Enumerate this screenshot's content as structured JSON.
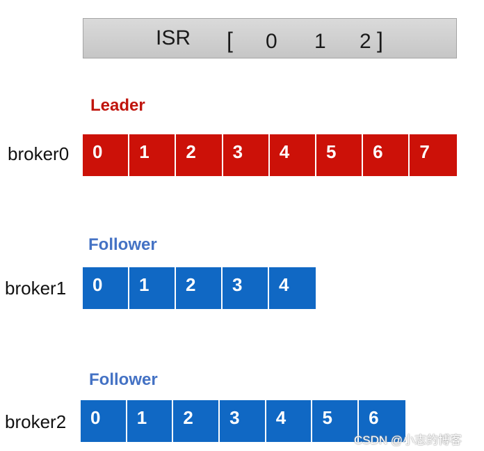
{
  "isr": {
    "label": "ISR",
    "open_bracket": "[",
    "close_bracket": "]",
    "members": [
      "0",
      "1",
      "2"
    ]
  },
  "rows": [
    {
      "role": "Leader",
      "role_color": "#c0140c",
      "broker": "broker0",
      "cell_color": "#cc1108",
      "offsets": [
        "0",
        "1",
        "2",
        "3",
        "4",
        "5",
        "6",
        "7"
      ]
    },
    {
      "role": "Follower",
      "role_color": "#4472c4",
      "broker": "broker1",
      "cell_color": "#1068c4",
      "offsets": [
        "0",
        "1",
        "2",
        "3",
        "4"
      ]
    },
    {
      "role": "Follower",
      "role_color": "#4472c4",
      "broker": "broker2",
      "cell_color": "#1068c4",
      "offsets": [
        "0",
        "1",
        "2",
        "3",
        "4",
        "5",
        "6"
      ]
    }
  ],
  "watermark": "CSDN @小志的博客"
}
